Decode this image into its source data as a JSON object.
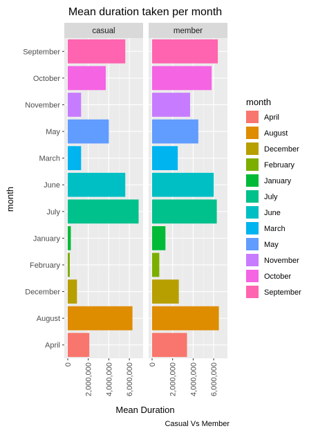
{
  "chart_data": {
    "type": "bar",
    "orientation": "horizontal",
    "title": "Mean duration taken per month",
    "xlabel": "Mean Duration",
    "ylabel": "month",
    "caption": "Casual Vs Member",
    "facets": [
      "casual",
      "member"
    ],
    "categories": [
      "April",
      "August",
      "December",
      "February",
      "January",
      "July",
      "June",
      "March",
      "May",
      "November",
      "October",
      "September"
    ],
    "xlim": [
      0,
      7000000
    ],
    "x_ticks": [
      0,
      2000000,
      4000000,
      6000000
    ],
    "x_tick_labels": [
      "0",
      "2,000,000",
      "4,000,000",
      "6,000,000"
    ],
    "grid": true,
    "legend": {
      "title": "month",
      "position": "right",
      "entries": [
        "April",
        "August",
        "December",
        "February",
        "January",
        "July",
        "June",
        "March",
        "May",
        "November",
        "October",
        "September"
      ]
    },
    "colors": {
      "April": "#F8766D",
      "August": "#DE8C00",
      "December": "#B79F00",
      "February": "#7CAE00",
      "January": "#00BA38",
      "July": "#00C08B",
      "June": "#00BFC4",
      "March": "#00B4F0",
      "May": "#619CFF",
      "November": "#C77CFF",
      "October": "#F564E3",
      "September": "#FF64B0"
    },
    "series": [
      {
        "name": "casual",
        "values": {
          "April": 2100000,
          "August": 6300000,
          "December": 900000,
          "February": 200000,
          "January": 300000,
          "July": 6900000,
          "June": 5600000,
          "March": 1300000,
          "May": 4000000,
          "November": 1300000,
          "October": 3700000,
          "September": 5600000
        }
      },
      {
        "name": "member",
        "values": {
          "April": 3400000,
          "August": 6500000,
          "December": 2600000,
          "February": 700000,
          "January": 1300000,
          "July": 6300000,
          "June": 6000000,
          "March": 2500000,
          "May": 4500000,
          "November": 3700000,
          "October": 5800000,
          "September": 6400000
        }
      }
    ]
  }
}
